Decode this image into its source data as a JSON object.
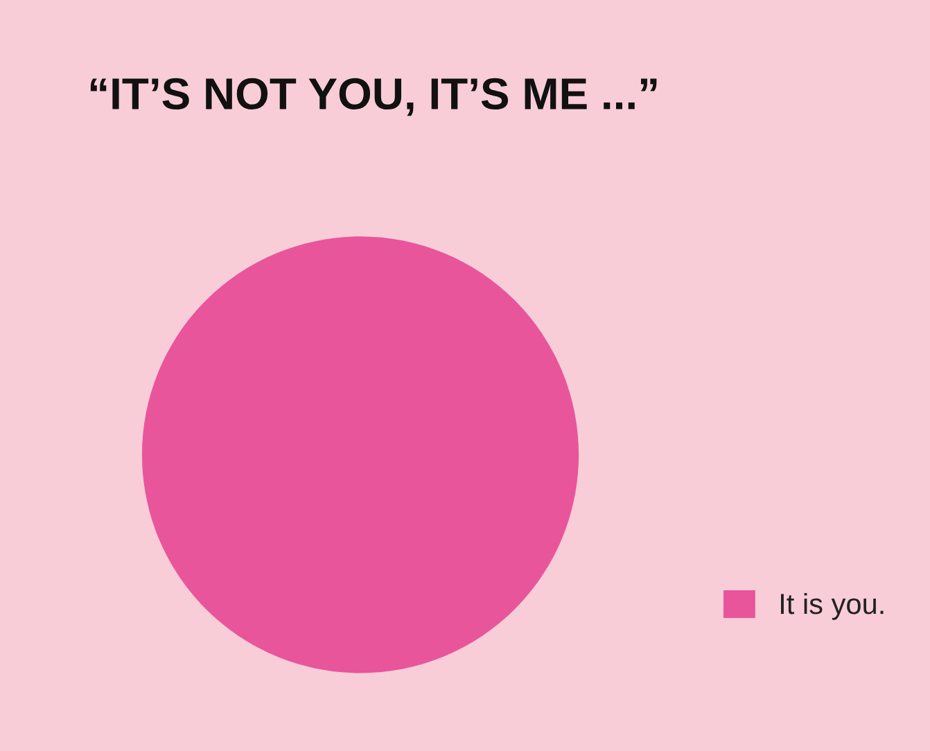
{
  "chart_data": {
    "type": "pie",
    "title": "“IT’S NOT YOU, IT’S ME ...”",
    "categories": [
      "It is you."
    ],
    "values": [
      100
    ],
    "colors": [
      "#e8559a"
    ],
    "legend": "bottom right"
  }
}
